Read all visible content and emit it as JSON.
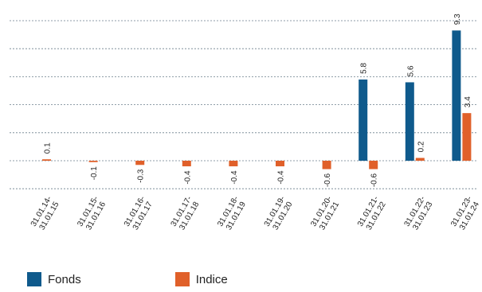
{
  "chart_data": {
    "type": "bar",
    "categories": [
      "31.01.14-\n31.01.15",
      "31.01.15-\n31.01.16",
      "31.01.16-\n31.01.17",
      "31.01.17-\n31.01.18",
      "31.01.18-\n31.01.19",
      "31.01.19-\n31.01.20",
      "31.01.20-\n31.01.21",
      "31.01.21-\n31.01.22",
      "31.01.22-\n31.01.23",
      "31.01.23-\n31.01.24"
    ],
    "series": [
      {
        "name": "Fonds",
        "color": "#0f5a8c",
        "values": [
          null,
          null,
          null,
          null,
          null,
          null,
          null,
          5.8,
          5.6,
          9.3
        ]
      },
      {
        "name": "Indice",
        "color": "#e0602a",
        "values": [
          0.1,
          -0.1,
          -0.3,
          -0.4,
          -0.4,
          -0.4,
          -0.6,
          -0.6,
          0.2,
          3.4
        ]
      }
    ],
    "title": "",
    "xlabel": "",
    "ylabel": "",
    "ylim": [
      -2,
      10
    ],
    "grid": true,
    "gridline_step": 2,
    "legend_position": "bottom-left"
  }
}
